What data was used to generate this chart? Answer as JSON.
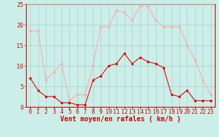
{
  "title": "",
  "xlabel": "Vent moyen/en rafales ( km/h )",
  "ylabel": "",
  "background_color": "#cceee8",
  "grid_color": "#aacccc",
  "x": [
    0,
    1,
    2,
    3,
    4,
    5,
    6,
    7,
    8,
    9,
    10,
    11,
    12,
    13,
    14,
    15,
    16,
    17,
    18,
    19,
    20,
    21,
    22,
    23
  ],
  "wind_avg": [
    7,
    4,
    2.5,
    2.5,
    1,
    1,
    0.5,
    0.5,
    6.5,
    7.5,
    10,
    10.5,
    13,
    10.5,
    12,
    11,
    10.5,
    9.5,
    3,
    2.5,
    4,
    1.5,
    1.5,
    1.5
  ],
  "wind_gust": [
    18.5,
    18.5,
    6.5,
    8.5,
    10.5,
    1.5,
    3,
    3,
    10,
    19.5,
    19.5,
    23.5,
    23,
    21,
    24.5,
    24.5,
    21,
    19.5,
    19.5,
    19.5,
    15,
    11.5,
    6.5,
    3
  ],
  "avg_color": "#dd0000",
  "gust_color": "#ffaaaa",
  "ylim": [
    0,
    25
  ],
  "yticks": [
    0,
    5,
    10,
    15,
    20,
    25
  ],
  "figsize": [
    3.2,
    2.0
  ],
  "dpi": 100,
  "xlabel_fontsize": 7,
  "tick_fontsize": 6,
  "label_color": "#cc0000"
}
